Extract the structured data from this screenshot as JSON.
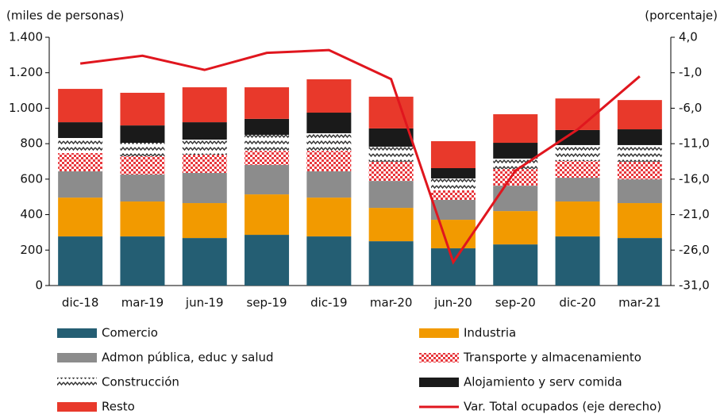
{
  "chart_data": {
    "type": "bar",
    "y_label": "(miles de personas)",
    "y2_label": "(porcentaje)",
    "categories": [
      "dic-18",
      "mar-19",
      "jun-19",
      "sep-19",
      "dic-19",
      "mar-20",
      "jun-20",
      "sep-20",
      "dic-20",
      "mar-21"
    ],
    "ylim": [
      0,
      1400
    ],
    "yticks": [
      0,
      200,
      400,
      600,
      800,
      {
        "value": 1000,
        "label": "1.000"
      },
      {
        "value": 1200,
        "label": "1.200"
      },
      {
        "value": 1400,
        "label": "1.400"
      }
    ],
    "y2lim": [
      -31,
      4
    ],
    "y2ticks": [
      {
        "value": -31,
        "label": "-31,0"
      },
      {
        "value": -26,
        "label": "-26,0"
      },
      {
        "value": -21,
        "label": "-21,0"
      },
      {
        "value": -16,
        "label": "-16,0"
      },
      {
        "value": -11,
        "label": "-11,0"
      },
      {
        "value": -6,
        "label": "-6,0"
      },
      {
        "value": -1,
        "label": "-1,0"
      },
      {
        "value": 4,
        "label": "4,0"
      }
    ],
    "series": [
      {
        "name": "Comercio",
        "color": "#245e73",
        "values": [
          277,
          277,
          268,
          286,
          277,
          250,
          210,
          232,
          277,
          268
        ]
      },
      {
        "name": "Industria",
        "color": "#f29a00",
        "values": [
          219,
          197,
          197,
          228,
          219,
          188,
          161,
          188,
          197,
          197
        ]
      },
      {
        "name": "Admon pública, educ y salud",
        "color": "#8c8c8c",
        "values": [
          148,
          152,
          170,
          166,
          148,
          152,
          112,
          143,
          134,
          134
        ]
      },
      {
        "name": "Transporte y almacenamiento",
        "color": "#e8383d",
        "pattern": "checker",
        "values": [
          103,
          103,
          103,
          80,
          116,
          108,
          54,
          94,
          94,
          99
        ]
      },
      {
        "name": "Construcción",
        "color": "#333333",
        "pattern": "wave",
        "values": [
          85,
          76,
          85,
          90,
          99,
          85,
          67,
          59,
          90,
          94
        ]
      },
      {
        "name": "Alojamiento y serv comida",
        "color": "#1a1a1a",
        "values": [
          89,
          98,
          98,
          90,
          116,
          103,
          58,
          89,
          85,
          89
        ]
      },
      {
        "name": "Resto",
        "color": "#e8392b",
        "values": [
          188,
          184,
          197,
          178,
          188,
          179,
          152,
          161,
          178,
          165
        ]
      },
      {
        "name": "Var. Total ocupados (eje derecho)",
        "color": "#e0161e",
        "type": "line",
        "axis": "y2",
        "values": [
          0.3,
          1.4,
          -0.6,
          1.8,
          2.2,
          -1.9,
          -27.7,
          -14.8,
          -9.0,
          -1.5
        ]
      }
    ]
  }
}
